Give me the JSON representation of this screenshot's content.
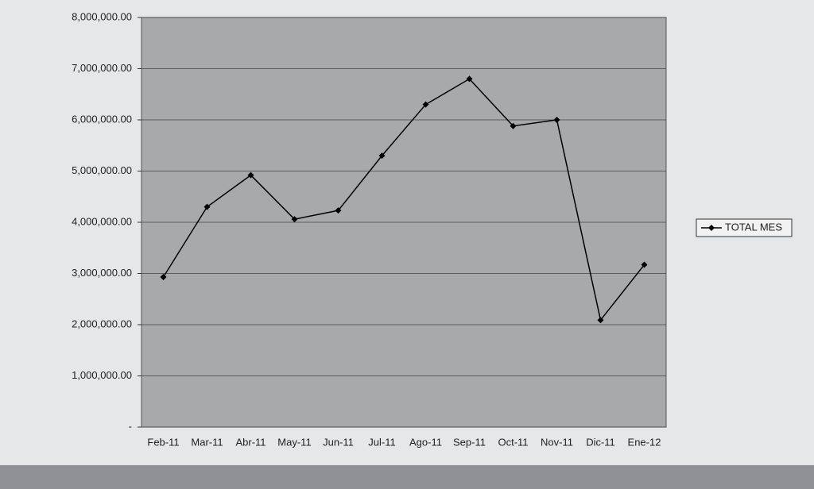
{
  "chart_data": {
    "type": "line",
    "categories": [
      "Feb-11",
      "Mar-11",
      "Abr-11",
      "May-11",
      "Jun-11",
      "Jul-11",
      "Ago-11",
      "Sep-11",
      "Oct-11",
      "Nov-11",
      "Dic-11",
      "Ene-12"
    ],
    "series": [
      {
        "name": "TOTAL MES",
        "color": "#000000",
        "values": [
          2930000,
          4300000,
          4920000,
          4060000,
          4230000,
          5300000,
          6300000,
          6800000,
          5880000,
          6000000,
          2090000,
          3170000
        ]
      }
    ],
    "ylim": [
      0,
      8000000
    ],
    "yticks": [
      {
        "value": 0,
        "label": "-"
      },
      {
        "value": 1000000,
        "label": "1,000,000.00"
      },
      {
        "value": 2000000,
        "label": "2,000,000.00"
      },
      {
        "value": 3000000,
        "label": "3,000,000.00"
      },
      {
        "value": 4000000,
        "label": "4,000,000.00"
      },
      {
        "value": 5000000,
        "label": "5,000,000.00"
      },
      {
        "value": 6000000,
        "label": "6,000,000.00"
      },
      {
        "value": 7000000,
        "label": "7,000,000.00"
      },
      {
        "value": 8000000,
        "label": "8,000,000.00"
      }
    ],
    "grid": true,
    "legend": "right",
    "plot_color": "#a8a9aa"
  }
}
